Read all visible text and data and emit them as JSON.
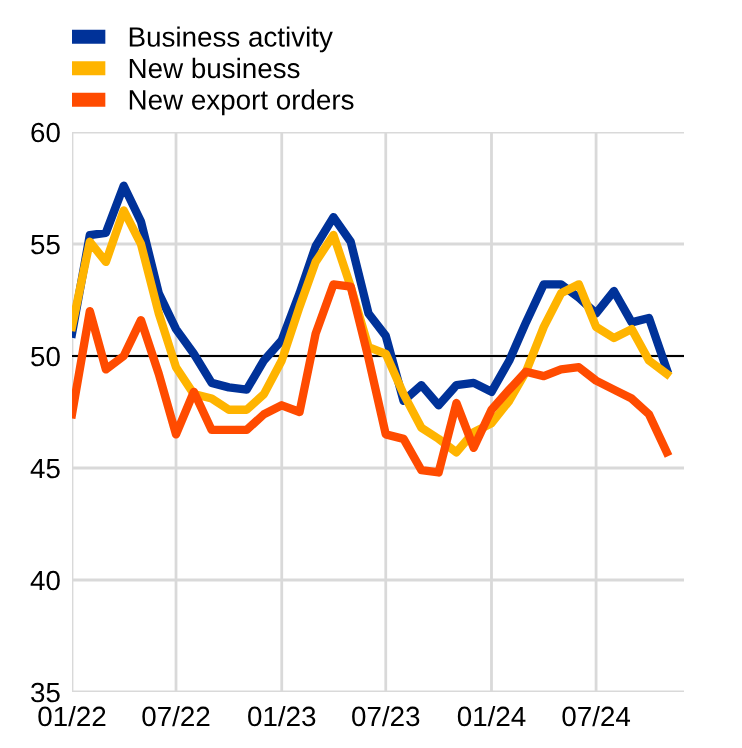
{
  "chart_data": {
    "type": "line",
    "x": [
      "2022-01",
      "2022-02",
      "2022-03",
      "2022-04",
      "2022-05",
      "2022-06",
      "2022-07",
      "2022-08",
      "2022-09",
      "2022-10",
      "2022-11",
      "2022-12",
      "2023-01",
      "2023-02",
      "2023-03",
      "2023-04",
      "2023-05",
      "2023-06",
      "2023-07",
      "2023-08",
      "2023-09",
      "2023-10",
      "2023-11",
      "2023-12",
      "2024-01",
      "2024-02",
      "2024-03",
      "2024-04",
      "2024-05",
      "2024-06",
      "2024-07",
      "2024-08",
      "2024-09",
      "2024-10",
      "2024-11"
    ],
    "series": [
      {
        "name": "Business activity",
        "color": "#003299",
        "values": [
          51.0,
          55.4,
          55.5,
          57.6,
          56.0,
          52.8,
          51.2,
          50.1,
          48.8,
          48.6,
          48.5,
          49.8,
          50.7,
          52.8,
          54.9,
          56.2,
          55.1,
          51.9,
          50.9,
          48.0,
          48.7,
          47.8,
          48.7,
          48.8,
          48.4,
          49.8,
          51.5,
          53.2,
          53.2,
          52.6,
          51.9,
          52.9,
          51.5,
          51.7,
          49.4
        ]
      },
      {
        "name": "New business",
        "color": "#ffb400",
        "values": [
          51.3,
          55.1,
          54.2,
          56.5,
          55.0,
          51.9,
          49.5,
          48.3,
          48.1,
          47.6,
          47.6,
          48.3,
          49.8,
          52.2,
          54.2,
          55.4,
          53.1,
          50.4,
          50.1,
          48.3,
          46.8,
          46.3,
          45.7,
          46.6,
          47.0,
          48.0,
          49.3,
          51.3,
          52.8,
          53.2,
          51.3,
          50.8,
          51.2,
          49.8,
          49.2
        ]
      },
      {
        "name": "New export orders",
        "color": "#ff4b00",
        "values": [
          47.4,
          52.0,
          49.4,
          50.0,
          51.6,
          49.2,
          46.5,
          48.4,
          46.7,
          46.7,
          46.7,
          47.4,
          47.8,
          47.5,
          51.0,
          53.2,
          53.1,
          49.9,
          46.5,
          46.3,
          44.9,
          44.8,
          47.9,
          45.9,
          47.6,
          48.5,
          49.3,
          49.1,
          49.4,
          49.5,
          48.9,
          48.5,
          48.1,
          47.4,
          45.7
        ]
      }
    ],
    "xlim": [
      "2022-01",
      "2024-12"
    ],
    "xticks": [
      {
        "value": "2022-01",
        "label": "01/22"
      },
      {
        "value": "2022-07",
        "label": "07/22"
      },
      {
        "value": "2023-01",
        "label": "01/23"
      },
      {
        "value": "2023-07",
        "label": "07/23"
      },
      {
        "value": "2024-01",
        "label": "01/24"
      },
      {
        "value": "2024-07",
        "label": "07/24"
      }
    ],
    "ylim": [
      35,
      60
    ],
    "yticks": [
      35,
      40,
      45,
      50,
      55,
      60
    ],
    "ref_lines": [
      {
        "axis": "y",
        "value": 50,
        "color": "#000000"
      }
    ],
    "grid": true,
    "legend": "top left",
    "line_style": "solid",
    "marker": "none"
  }
}
